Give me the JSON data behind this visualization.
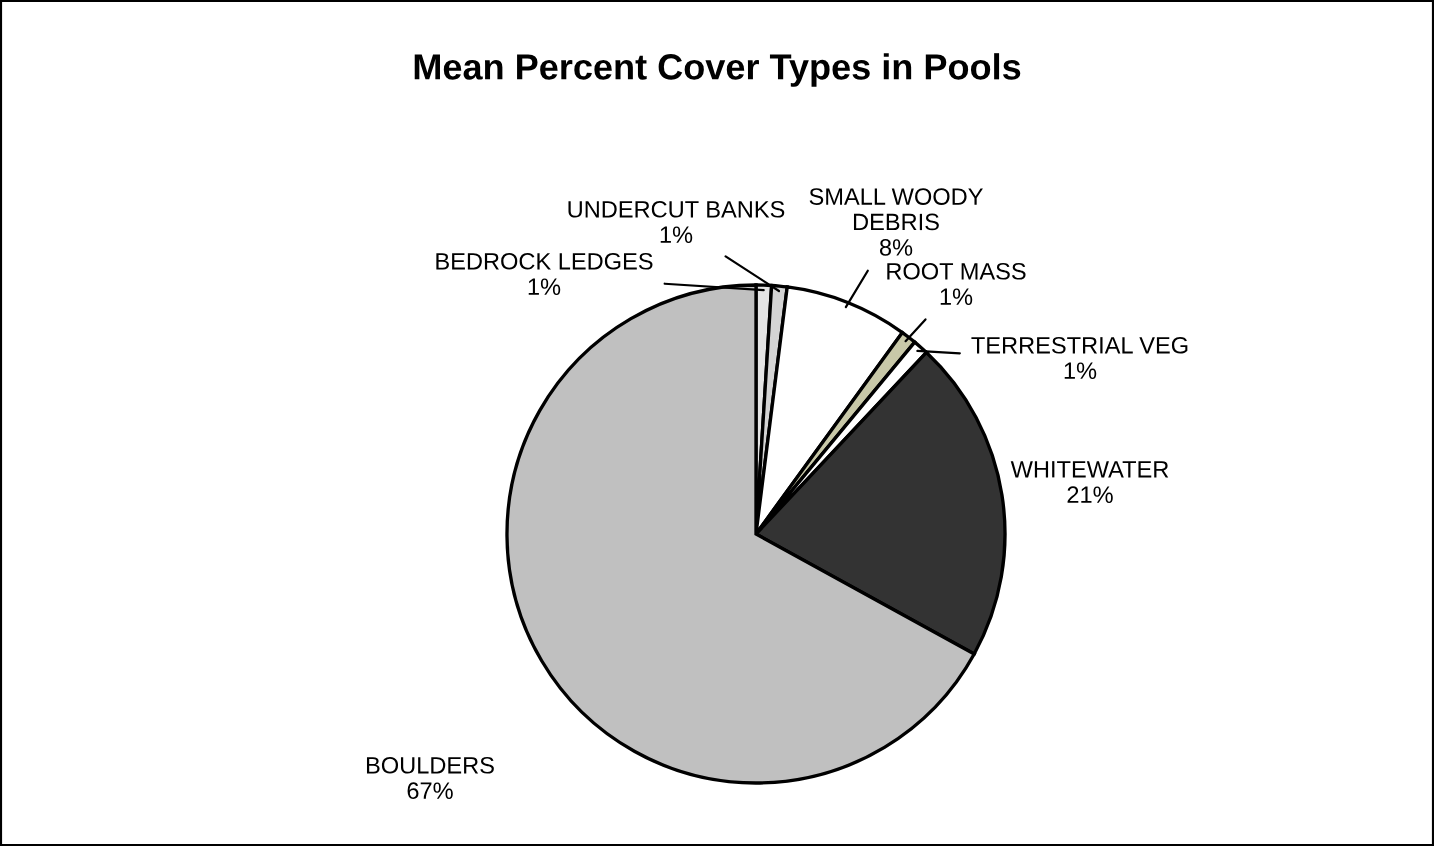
{
  "chart_data": {
    "type": "pie",
    "title": "Mean Percent Cover Types in Pools",
    "categories": [
      "BEDROCK LEDGES",
      "UNDERCUT BANKS",
      "SMALL WOODY DEBRIS",
      "ROOT MASS",
      "TERRESTRIAL VEG",
      "WHITEWATER",
      "BOULDERS"
    ],
    "values": [
      1,
      1,
      8,
      1,
      1,
      21,
      67
    ],
    "value_labels": [
      "1%",
      "1%",
      "8%",
      "1%",
      "1%",
      "21%",
      "67%"
    ],
    "colors": [
      "#e4e4e4",
      "#d4d4d4",
      "#ffffff",
      "#c8c8a8",
      "#ffffff",
      "#333333",
      "#c0c0c0"
    ],
    "legend": false
  }
}
